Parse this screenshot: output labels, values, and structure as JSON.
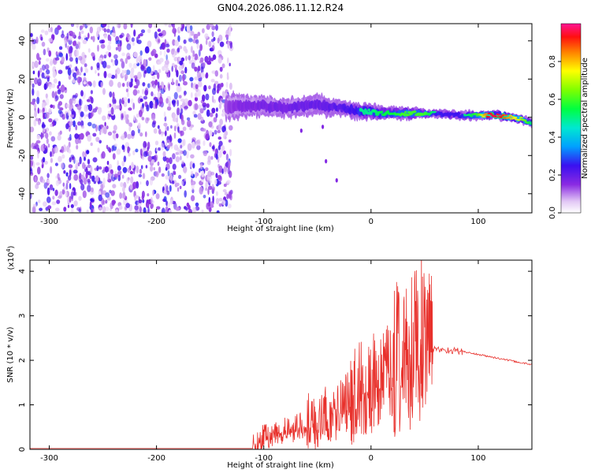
{
  "title": "GN04.2026.086.11.12.R24",
  "chart_data": [
    {
      "type": "heatmap",
      "name": "spectrogram",
      "xlabel": "Height of straight line (km)",
      "ylabel": "Frequency (Hz)",
      "xlim": [
        -318,
        150
      ],
      "ylim": [
        -50,
        49
      ],
      "xticks": [
        -300,
        -200,
        -100,
        0,
        100
      ],
      "yticks": [
        -40,
        -20,
        0,
        20,
        40
      ],
      "noise_region": {
        "x": [
          -318,
          -130
        ],
        "y": [
          -50,
          49
        ]
      },
      "signal_track": {
        "x": [
          -135,
          -120,
          -100,
          -80,
          -60,
          -50,
          -40,
          -30,
          -20,
          -10,
          0,
          10,
          20,
          30,
          40,
          50,
          60,
          80,
          100,
          110,
          120,
          130,
          140,
          150
        ],
        "y": [
          5,
          6,
          6,
          5,
          6,
          7,
          5,
          5,
          4,
          3,
          3,
          2,
          2,
          2,
          2,
          2,
          2,
          1,
          1,
          1,
          1,
          0,
          -1,
          -3
        ],
        "amp": [
          0.25,
          0.3,
          0.32,
          0.34,
          0.35,
          0.36,
          0.38,
          0.4,
          0.45,
          0.5,
          0.5,
          0.55,
          0.55,
          0.6,
          0.6,
          0.6,
          0.5,
          0.45,
          0.6,
          0.95,
          0.95,
          0.8,
          0.7,
          0.5
        ],
        "half_width_hz": [
          7,
          6,
          5,
          5,
          5,
          5,
          5,
          4,
          4,
          4,
          4,
          3,
          3,
          3,
          3,
          2,
          2,
          2,
          2,
          2,
          2,
          2,
          2,
          2
        ]
      },
      "outlier_points": [
        {
          "x": -65,
          "y": -7
        },
        {
          "x": -45,
          "y": -5
        },
        {
          "x": -42,
          "y": -23
        },
        {
          "x": -32,
          "y": -33
        }
      ],
      "colorbar": {
        "label": "Normalized spectral amplitude",
        "range": [
          0.0,
          1.0
        ],
        "ticks": [
          "0.0",
          "0.2",
          "0.4",
          "0.6",
          "0.8"
        ],
        "tick_values": [
          0.0,
          0.2,
          0.4,
          0.6,
          0.8
        ]
      }
    },
    {
      "type": "line",
      "name": "snr",
      "xlabel": "Height of straight line (km)",
      "ylabel": "SNR (10 * v/v)",
      "multiplier": "(x10^4)",
      "multiplier_base": "(x10",
      "multiplier_exp": "4",
      "multiplier_close": ")",
      "xlim": [
        -318,
        150
      ],
      "ylim": [
        0,
        4.25
      ],
      "xticks": [
        -300,
        -200,
        -100,
        0,
        100
      ],
      "yticks": [
        0,
        1,
        2,
        3,
        4
      ],
      "color": "#e8312c",
      "segments": [
        {
          "x": [
            -318,
            -110
          ],
          "base": [
            0.02,
            0.02
          ],
          "noise": 0.0
        },
        {
          "x": [
            -110,
            -60
          ],
          "base": [
            0.1,
            0.5
          ],
          "noise": 0.4
        },
        {
          "x": [
            -60,
            -20
          ],
          "base": [
            0.4,
            0.9
          ],
          "noise": 0.9
        },
        {
          "x": [
            -20,
            20
          ],
          "base": [
            0.8,
            1.6
          ],
          "noise": 1.5
        },
        {
          "x": [
            20,
            58
          ],
          "base": [
            1.5,
            2.1
          ],
          "noise": 2.2
        },
        {
          "x": [
            58,
            85
          ],
          "base": [
            2.25,
            2.2
          ],
          "noise": 0.08
        },
        {
          "x": [
            85,
            150
          ],
          "base": [
            2.2,
            1.9
          ],
          "noise": 0.02
        }
      ],
      "peak": {
        "x": 47,
        "y": 4.25
      }
    }
  ]
}
